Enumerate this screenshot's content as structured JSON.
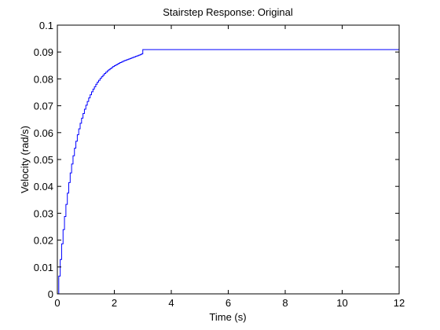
{
  "chart_data": {
    "type": "line",
    "title": "Stairstep Response: Original",
    "xlabel": "Time (s)",
    "ylabel": "Velocity (rad/s)",
    "xlim": [
      0,
      12
    ],
    "ylim": [
      0,
      0.1
    ],
    "xticks": [
      0,
      2,
      4,
      6,
      8,
      10,
      12
    ],
    "xtick_labels": [
      "0",
      "2",
      "4",
      "6",
      "8",
      "10",
      "12"
    ],
    "yticks": [
      0,
      0.01,
      0.02,
      0.03,
      0.04,
      0.05,
      0.06,
      0.07,
      0.08,
      0.09,
      0.1
    ],
    "ytick_labels": [
      "0",
      "0.01",
      "0.02",
      "0.03",
      "0.04",
      "0.05",
      "0.06",
      "0.07",
      "0.08",
      "0.09",
      "0.1"
    ],
    "grid": false,
    "style": "stairs",
    "series": [
      {
        "color": "#0000ff",
        "x": [
          0,
          0.05,
          0.1,
          0.15,
          0.2,
          0.25,
          0.3,
          0.35,
          0.4,
          0.45,
          0.5,
          0.55,
          0.6,
          0.65,
          0.7,
          0.75,
          0.8,
          0.85,
          0.9,
          0.95,
          1.0,
          1.05,
          1.1,
          1.15,
          1.2,
          1.25,
          1.3,
          1.35,
          1.4,
          1.45,
          1.5,
          1.55,
          1.6,
          1.65,
          1.7,
          1.75,
          1.8,
          1.85,
          1.9,
          1.95,
          2.0,
          2.05,
          2.1,
          2.15,
          2.2,
          2.25,
          2.3,
          2.35,
          2.4,
          2.45,
          2.5,
          2.55,
          2.6,
          2.65,
          2.7,
          2.75,
          2.8,
          2.85,
          2.9,
          2.95,
          3.0,
          12.0
        ],
        "y": [
          0,
          0.0066,
          0.0128,
          0.0186,
          0.0239,
          0.0288,
          0.0333,
          0.0375,
          0.0414,
          0.045,
          0.0483,
          0.0514,
          0.0542,
          0.0568,
          0.0592,
          0.0614,
          0.0635,
          0.0654,
          0.0671,
          0.0687,
          0.0702,
          0.0716,
          0.0729,
          0.0741,
          0.0752,
          0.0762,
          0.0771,
          0.078,
          0.0788,
          0.0795,
          0.0802,
          0.0808,
          0.0814,
          0.082,
          0.0825,
          0.083,
          0.0834,
          0.0838,
          0.0842,
          0.0846,
          0.0849,
          0.0852,
          0.0855,
          0.0858,
          0.0861,
          0.0863,
          0.0866,
          0.0868,
          0.087,
          0.0872,
          0.0874,
          0.0876,
          0.0878,
          0.088,
          0.0882,
          0.0884,
          0.0886,
          0.0888,
          0.089,
          0.0893,
          0.0909,
          0.0909
        ]
      }
    ]
  }
}
